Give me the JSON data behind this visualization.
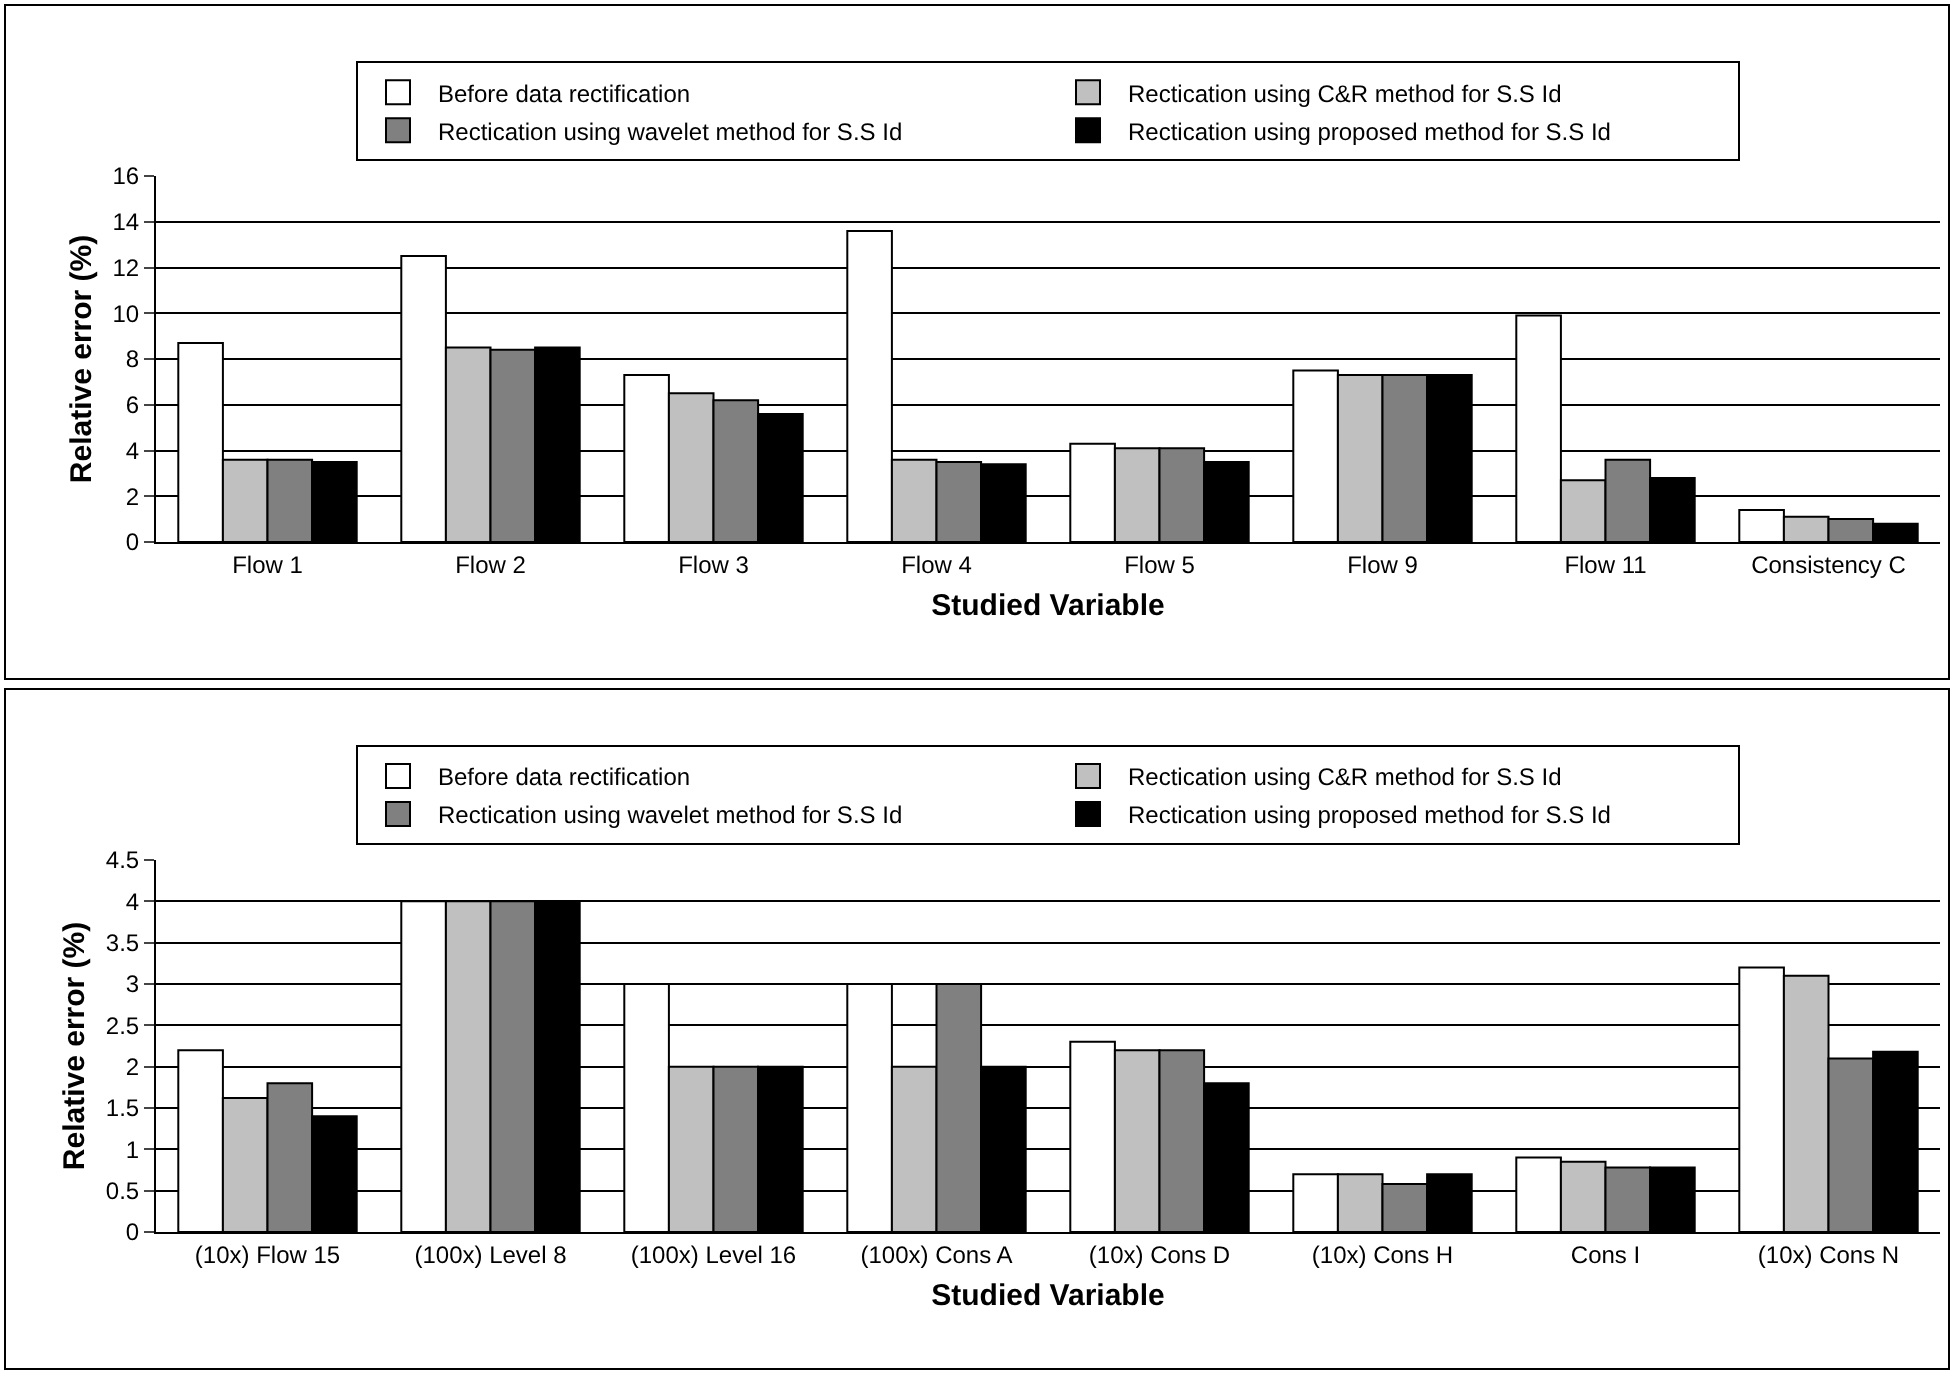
{
  "chart_data": [
    {
      "type": "bar",
      "xlabel": "Studied Variable",
      "ylabel": "Relative error (%)",
      "categories": [
        "Flow 1",
        "Flow 2",
        "Flow 3",
        "Flow 4",
        "Flow 5",
        "Flow 9",
        "Flow 11",
        "Consistency C"
      ],
      "series": [
        {
          "name": "Before data rectification",
          "color": "#ffffff",
          "values": [
            8.7,
            12.5,
            7.3,
            13.6,
            4.3,
            7.5,
            9.9,
            1.4
          ]
        },
        {
          "name": "Rectication using C&R method for S.S Id",
          "color": "#c0c0c0",
          "values": [
            3.6,
            8.5,
            6.5,
            3.6,
            4.1,
            7.3,
            2.7,
            1.1
          ]
        },
        {
          "name": "Rectication using wavelet method for S.S Id",
          "color": "#808080",
          "values": [
            3.6,
            8.4,
            6.2,
            3.5,
            4.1,
            7.3,
            3.6,
            1.0
          ]
        },
        {
          "name": "Rectication using proposed method for S.S Id",
          "color": "#000000",
          "values": [
            3.5,
            8.5,
            5.6,
            3.4,
            3.5,
            7.3,
            2.8,
            0.8
          ]
        }
      ],
      "ylim": [
        0,
        16
      ],
      "yticks": [
        0,
        2,
        4,
        6,
        8,
        10,
        12,
        14,
        16
      ],
      "grid": "y",
      "legend": "top"
    },
    {
      "type": "bar",
      "xlabel": "Studied Variable",
      "ylabel": "Relative error (%)",
      "categories": [
        "(10x) Flow 15",
        "(100x) Level 8",
        "(100x) Level 16",
        "(100x) Cons A",
        "(10x) Cons D",
        "(10x) Cons H",
        "Cons I",
        "(10x) Cons N"
      ],
      "series": [
        {
          "name": "Before data rectification",
          "color": "#ffffff",
          "values": [
            2.2,
            4,
            3,
            3,
            2.3,
            0.7,
            0.9,
            3.2
          ]
        },
        {
          "name": "Rectication using C&R method for S.S Id",
          "color": "#c0c0c0",
          "values": [
            1.62,
            4,
            2,
            2,
            2.2,
            0.7,
            0.85,
            3.1
          ]
        },
        {
          "name": "Rectication using wavelet method for S.S Id",
          "color": "#808080",
          "values": [
            1.8,
            4,
            2,
            3,
            2.2,
            0.58,
            0.78,
            2.1
          ]
        },
        {
          "name": "Rectication using proposed method for S.S Id",
          "color": "#000000",
          "values": [
            1.4,
            4,
            2,
            2,
            1.8,
            0.7,
            0.78,
            2.18
          ]
        }
      ],
      "ylim": [
        0,
        4.5
      ],
      "yticks": [
        0,
        0.5,
        1,
        1.5,
        2,
        2.5,
        3,
        3.5,
        4,
        4.5
      ],
      "grid": "y",
      "legend": "top"
    }
  ]
}
